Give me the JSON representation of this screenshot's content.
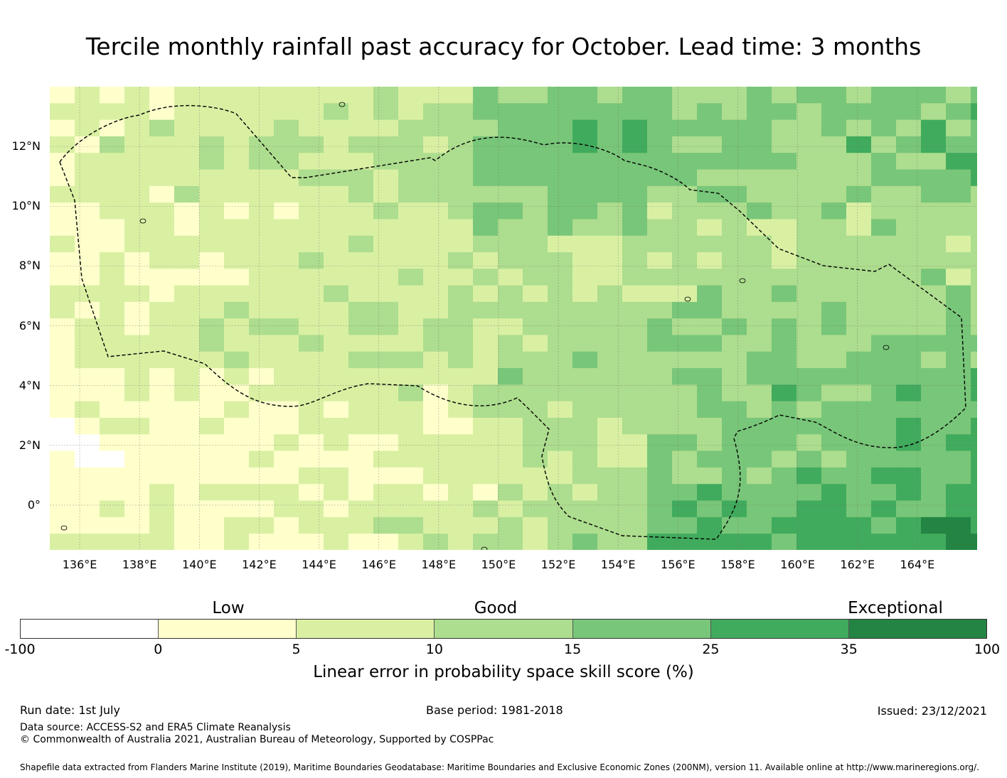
{
  "title": "Tercile monthly rainfall past accuracy for October. Lead time: 3 months",
  "map": {
    "lat_labels": [
      "12°N",
      "10°N",
      "8°N",
      "6°N",
      "4°N",
      "2°N",
      "0°"
    ],
    "lon_labels": [
      "136°E",
      "138°E",
      "140°E",
      "142°E",
      "144°E",
      "146°E",
      "148°E",
      "150°E",
      "152°E",
      "154°E",
      "156°E",
      "158°E",
      "160°E",
      "162°E",
      "164°E"
    ],
    "lat_values": [
      12,
      10,
      8,
      6,
      4,
      2,
      0
    ],
    "lon_values": [
      136,
      138,
      140,
      142,
      144,
      146,
      148,
      150,
      152,
      154,
      156,
      158,
      160,
      162,
      164
    ],
    "lon_range": [
      135,
      166
    ],
    "lat_range": [
      -1.5,
      14
    ],
    "grid_lines": true,
    "eez_boundary_style": "dashed"
  },
  "legend": {
    "categories": [
      "Low",
      "Good",
      "Exceptional"
    ],
    "tick_labels": [
      "-100",
      "0",
      "5",
      "10",
      "15",
      "25",
      "35",
      "100"
    ],
    "colors": [
      "#ffffff",
      "#ffffcc",
      "#d9f0a3",
      "#addd8e",
      "#78c679",
      "#41ab5d",
      "#238443"
    ],
    "label": "Linear error in probability space skill score (%)"
  },
  "footer": {
    "run_date": "Run date: 1st July",
    "base_period": "Base period: 1981-2018",
    "issued": "Issued: 23/12/2021",
    "data_source": "Data source: ACCESS-S2 and ERA5 Climate Reanalysis",
    "copyright": "© Commonwealth of Australia 2021, Australian Bureau of Meteorology, Supported by COSPPac",
    "shapefile": "Shapefile data extracted from Flanders Marine Institute (2019), Maritime Boundaries Geodatabase: Maritime Boundaries and Exclusive Economic Zones (200NM), version 11. Available online at http://www.marineregions.org/."
  }
}
